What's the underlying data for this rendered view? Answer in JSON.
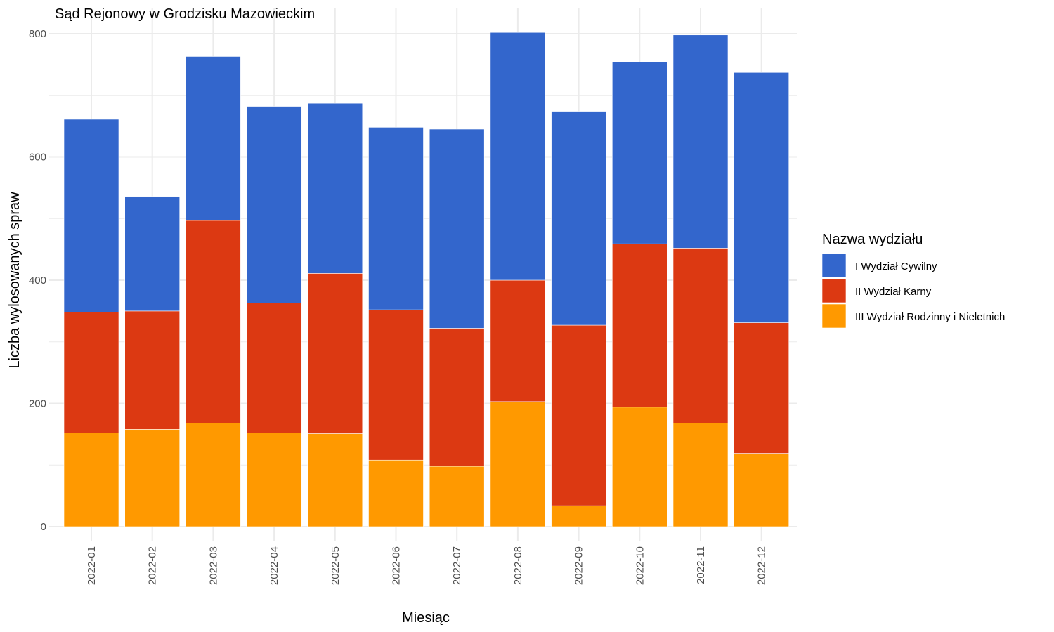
{
  "chart_data": {
    "type": "bar",
    "stacked": true,
    "title": "Sąd Rejonowy w Grodzisku Mazowieckim",
    "xlabel": "Miesiąc",
    "ylabel": "Liczba wylosowanych spraw",
    "ylim": [
      0,
      800
    ],
    "y_ticks": [
      0,
      200,
      400,
      600,
      800
    ],
    "grid": true,
    "legend_title": "Nazwa wydziału",
    "legend_position": "right",
    "categories": [
      "2022-01",
      "2022-02",
      "2022-03",
      "2022-04",
      "2022-05",
      "2022-06",
      "2022-07",
      "2022-08",
      "2022-09",
      "2022-10",
      "2022-11",
      "2022-12"
    ],
    "series": [
      {
        "name": "III Wydział Rodzinny i Nieletnich",
        "color": "#FF9900",
        "values": [
          152,
          158,
          168,
          152,
          151,
          108,
          98,
          203,
          34,
          194,
          168,
          119
        ]
      },
      {
        "name": "II Wydział Karny",
        "color": "#DC3912",
        "values": [
          196,
          192,
          329,
          211,
          260,
          244,
          224,
          197,
          293,
          265,
          284,
          212
        ]
      },
      {
        "name": "I Wydział Cywilny",
        "color": "#3366CC",
        "values": [
          313,
          186,
          266,
          319,
          276,
          296,
          323,
          402,
          347,
          295,
          346,
          406
        ]
      }
    ],
    "legend_order": [
      "I Wydział Cywilny",
      "II Wydział Karny",
      "III Wydział Rodzinny i Nieletnich"
    ]
  }
}
